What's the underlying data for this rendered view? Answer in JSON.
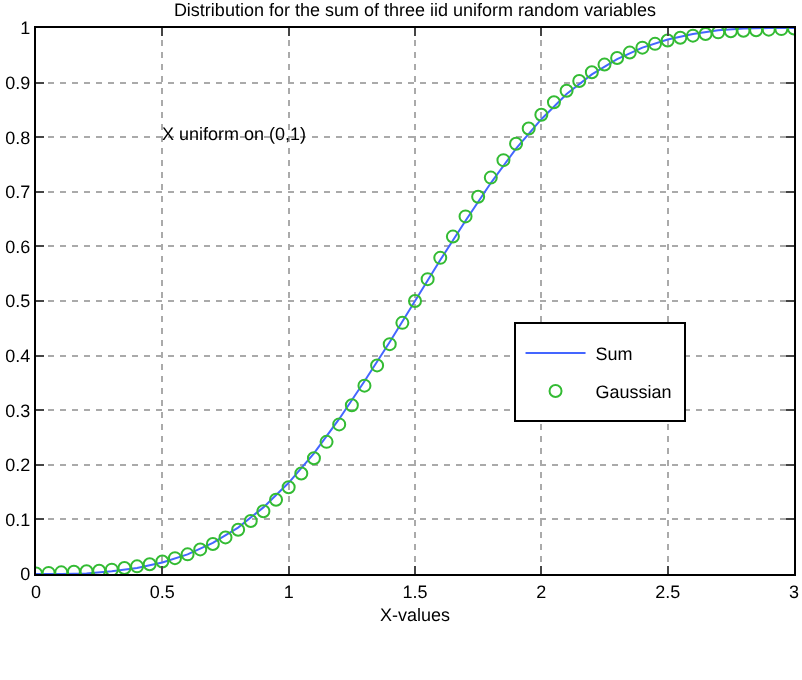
{
  "chart_data": {
    "type": "line",
    "title": "Distribution for the sum of three iid uniform random variables",
    "xlabel": "X-values",
    "annotations": [
      "X uniform on (0,1)"
    ],
    "xlim": [
      0,
      3
    ],
    "xticks": [
      0,
      0.5,
      1,
      1.5,
      2,
      2.5,
      3
    ],
    "ylim": [
      0,
      1
    ],
    "yticks": [
      0,
      0.1,
      0.2,
      0.3,
      0.4,
      0.5,
      0.6,
      0.7,
      0.8,
      0.9,
      1
    ],
    "grid": true,
    "legend": "right",
    "line_style": "solid",
    "series": [
      {
        "name": "Sum",
        "color": "#4466ff",
        "x": [
          0,
          0.1,
          0.2,
          0.3,
          0.4,
          0.5,
          0.6,
          0.7,
          0.8,
          0.9,
          1,
          1.1,
          1.2,
          1.3,
          1.4,
          1.5,
          1.6,
          1.7,
          1.8,
          1.9,
          2,
          2.1,
          2.2,
          2.3,
          2.4,
          2.5,
          2.6,
          2.7,
          2.8,
          2.9,
          3
        ],
        "values": [
          0,
          0.0,
          0.001,
          0.005,
          0.011,
          0.021,
          0.036,
          0.057,
          0.085,
          0.122,
          0.167,
          0.221,
          0.284,
          0.353,
          0.425,
          0.5,
          0.575,
          0.647,
          0.716,
          0.779,
          0.833,
          0.879,
          0.915,
          0.943,
          0.964,
          0.979,
          0.989,
          0.996,
          0.999,
          1.0,
          1
        ]
      },
      {
        "name": "Gaussian",
        "type": "scatter",
        "marker": "circle",
        "color": "#33bb33",
        "x": [
          0,
          0.05,
          0.1,
          0.15,
          0.2,
          0.25,
          0.3,
          0.35,
          0.4,
          0.45,
          0.5,
          0.55,
          0.6,
          0.65,
          0.7,
          0.75,
          0.8,
          0.85,
          0.9,
          0.95,
          1,
          1.05,
          1.1,
          1.15,
          1.2,
          1.25,
          1.3,
          1.35,
          1.4,
          1.45,
          1.5,
          1.55,
          1.6,
          1.65,
          1.7,
          1.75,
          1.8,
          1.85,
          1.9,
          1.95,
          2,
          2.05,
          2.1,
          2.15,
          2.2,
          2.25,
          2.3,
          2.35,
          2.4,
          2.45,
          2.5,
          2.55,
          2.6,
          2.65,
          2.7,
          2.75,
          2.8,
          2.85,
          2.9,
          2.95,
          3
        ],
        "values": [
          0.001,
          0.002,
          0.003,
          0.004,
          0.005,
          0.006,
          0.008,
          0.011,
          0.014,
          0.018,
          0.023,
          0.029,
          0.036,
          0.045,
          0.055,
          0.067,
          0.081,
          0.097,
          0.115,
          0.136,
          0.159,
          0.184,
          0.212,
          0.242,
          0.274,
          0.309,
          0.345,
          0.382,
          0.421,
          0.46,
          0.5,
          0.54,
          0.579,
          0.618,
          0.655,
          0.691,
          0.726,
          0.758,
          0.788,
          0.816,
          0.841,
          0.864,
          0.885,
          0.903,
          0.919,
          0.933,
          0.945,
          0.955,
          0.964,
          0.971,
          0.977,
          0.982,
          0.986,
          0.989,
          0.992,
          0.994,
          0.995,
          0.996,
          0.997,
          0.998,
          0.999
        ]
      }
    ]
  }
}
